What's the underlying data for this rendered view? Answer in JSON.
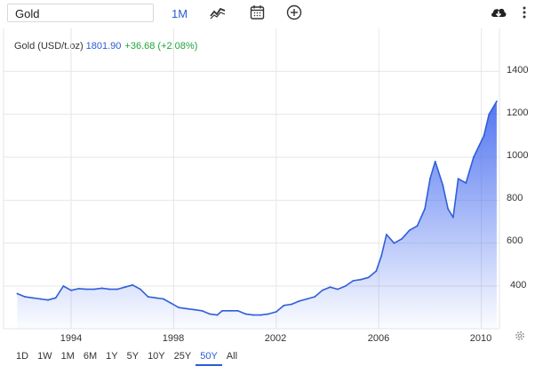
{
  "toolbar": {
    "symbol_value": "Gold",
    "period": "1M",
    "icons": [
      "chart-type-icon",
      "calendar-icon",
      "add-compare-icon",
      "download-cloud-icon",
      "more-vertical-icon"
    ]
  },
  "legend": {
    "name": "Gold (USD/t.oz)",
    "price": "1801.90",
    "change": "+36.68 (+2.08%)"
  },
  "ranges": [
    "1D",
    "1W",
    "1M",
    "6M",
    "1Y",
    "5Y",
    "10Y",
    "25Y",
    "50Y",
    "All"
  ],
  "active_range": "50Y",
  "colors": {
    "accent": "#2a5bd7",
    "line": "#2f5fd8",
    "positive": "#1fa53b",
    "grid": "#e6e6e6"
  },
  "chart_data": {
    "type": "area",
    "ylim": [
      200,
      1400
    ],
    "y_ticks": [
      "1400",
      "1200",
      "1000",
      "800",
      "600",
      "400"
    ],
    "x_ticks": [
      "1994",
      "1998",
      "2002",
      "2006",
      "2010"
    ],
    "grid": true,
    "series": [
      {
        "x": [
          1991.9,
          1992.2,
          1992.5,
          1992.8,
          1993.1,
          1993.4,
          1993.7,
          1994.0,
          1994.3,
          1994.6,
          1994.9,
          1995.2,
          1995.5,
          1995.8,
          1996.1,
          1996.4,
          1996.7,
          1997.0,
          1997.3,
          1997.6,
          1997.9,
          1998.2,
          1998.5,
          1998.8,
          1999.1,
          1999.4,
          1999.7,
          1999.9,
          2000.2,
          2000.5,
          2000.8,
          2001.1,
          2001.4,
          2001.7,
          2002.0,
          2002.3,
          2002.6,
          2002.9,
          2003.2,
          2003.5,
          2003.8,
          2004.1,
          2004.4,
          2004.7,
          2005.0,
          2005.3,
          2005.6,
          2005.9,
          2006.1,
          2006.3,
          2006.6,
          2006.9,
          2007.2,
          2007.5,
          2007.8,
          2008.0,
          2008.2,
          2008.5,
          2008.7,
          2008.9,
          2009.1,
          2009.4,
          2009.7,
          2009.9,
          2010.1,
          2010.3,
          2010.5,
          2010.6
        ],
        "y": [
          365,
          350,
          345,
          340,
          335,
          345,
          400,
          380,
          388,
          385,
          385,
          390,
          385,
          385,
          395,
          405,
          385,
          350,
          345,
          340,
          320,
          300,
          295,
          290,
          285,
          270,
          265,
          285,
          285,
          285,
          270,
          265,
          265,
          270,
          280,
          310,
          315,
          330,
          340,
          350,
          380,
          395,
          385,
          400,
          425,
          430,
          440,
          470,
          540,
          640,
          600,
          620,
          660,
          680,
          760,
          900,
          980,
          870,
          760,
          720,
          900,
          880,
          1000,
          1050,
          1100,
          1200,
          1240,
          1260
        ]
      }
    ]
  }
}
